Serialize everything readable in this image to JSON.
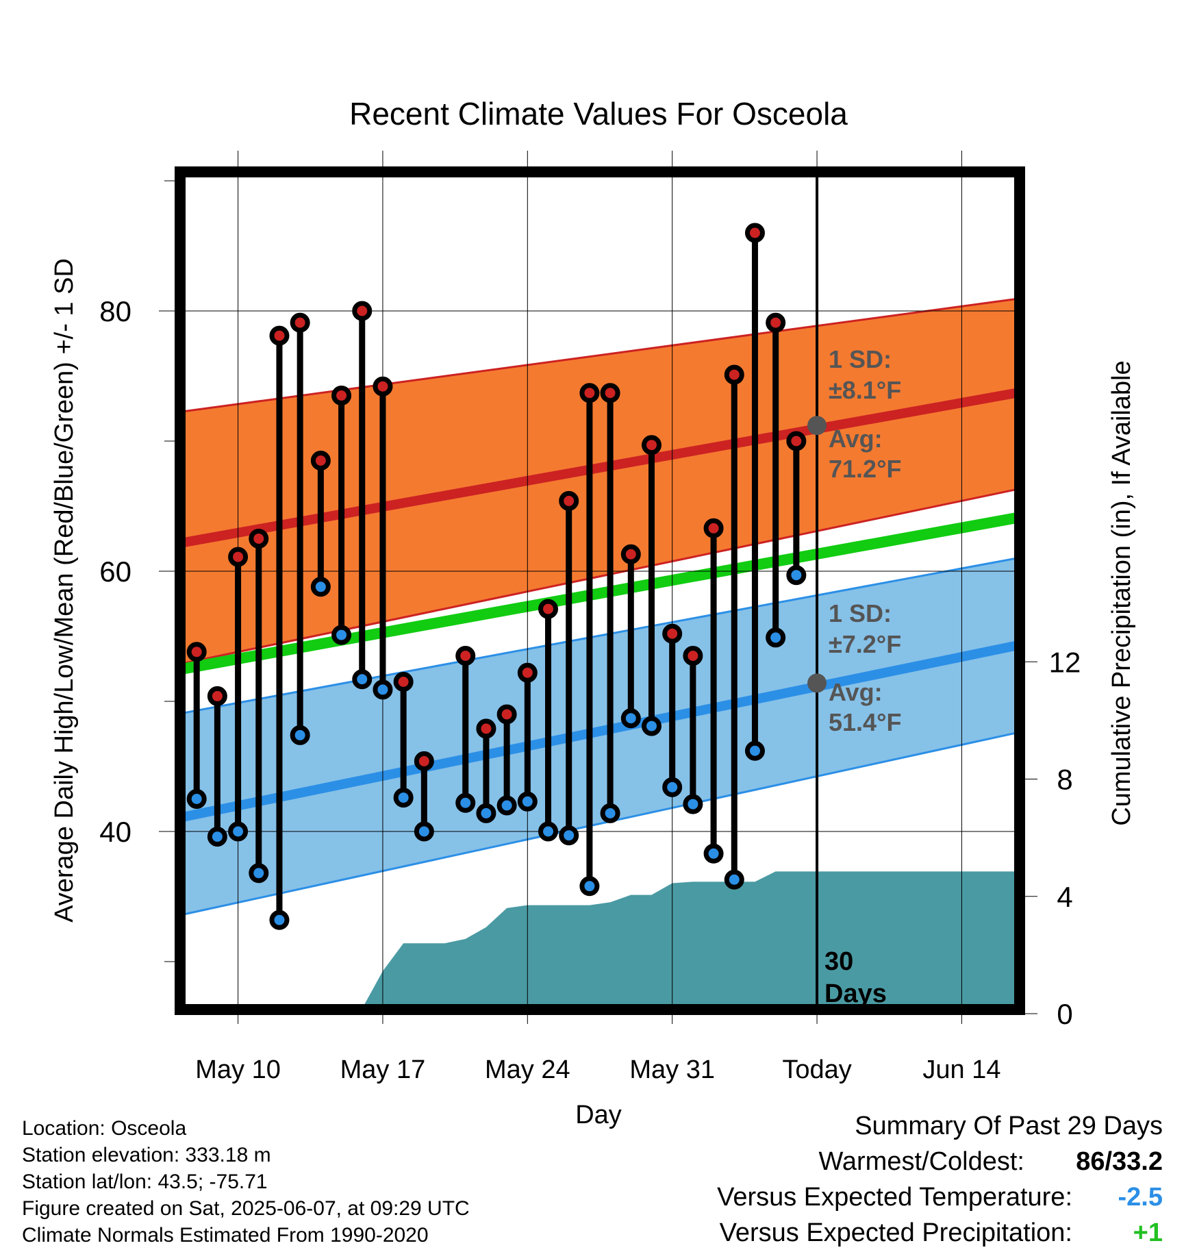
{
  "chart_data": {
    "type": "line",
    "title": "Recent Climate Values For Osceola",
    "xlabel": "Day",
    "ylabel": "Average Daily High/Low/Mean (Red/Blue/Green) +/- 1 SD",
    "y2label": "Cumulative Precipitation (in), If Available",
    "x_domain": [
      "2025-05-07",
      "2025-06-17"
    ],
    "x_ticks": [
      {
        "date": "2025-05-10",
        "label": "May 10"
      },
      {
        "date": "2025-05-17",
        "label": "May 17"
      },
      {
        "date": "2025-05-24",
        "label": "May 24"
      },
      {
        "date": "2025-05-31",
        "label": "May 31"
      },
      {
        "date": "2025-06-07",
        "label": "Today"
      },
      {
        "date": "2025-06-14",
        "label": "Jun 14"
      }
    ],
    "ylim": [
      26,
      91
    ],
    "y_ticks": [
      40,
      60,
      80
    ],
    "y_minor_ticks": [
      30,
      50,
      70,
      90
    ],
    "y2lim": [
      0,
      28.85
    ],
    "y2_ticks": [
      0,
      4,
      8,
      12
    ],
    "grid": true,
    "today": "2025-06-07",
    "today_label_lines": [
      "30",
      "Days"
    ],
    "normals": {
      "dates": [
        "2025-05-07",
        "2025-06-17"
      ],
      "high_avg": [
        62.1,
        73.8
      ],
      "high_upper": [
        72.2,
        81.0
      ],
      "high_lower": [
        52.8,
        66.4
      ],
      "low_avg": [
        41.0,
        54.4
      ],
      "low_upper": [
        49.0,
        61.1
      ],
      "low_lower": [
        33.5,
        47.7
      ],
      "mean_avg": [
        52.4,
        64.2
      ]
    },
    "annotations": {
      "high": {
        "sd_line1": "1 SD:",
        "sd_line2": "±8.1°F",
        "avg_line1": "Avg:",
        "avg_line2": "71.2°F",
        "avg_value": 71.2
      },
      "low": {
        "sd_line1": "1 SD:",
        "sd_line2": "±7.2°F",
        "avg_line1": "Avg:",
        "avg_line2": "51.4°F",
        "avg_value": 51.4
      }
    },
    "series": [
      {
        "name": "High",
        "color": "#cc2222",
        "x": [
          "2025-05-08",
          "2025-05-09",
          "2025-05-10",
          "2025-05-11",
          "2025-05-12",
          "2025-05-13",
          "2025-05-14",
          "2025-05-15",
          "2025-05-16",
          "2025-05-17",
          "2025-05-18",
          "2025-05-19",
          "2025-05-21",
          "2025-05-22",
          "2025-05-23",
          "2025-05-24",
          "2025-05-25",
          "2025-05-26",
          "2025-05-27",
          "2025-05-28",
          "2025-05-29",
          "2025-05-30",
          "2025-05-31",
          "2025-06-01",
          "2025-06-02",
          "2025-06-03",
          "2025-06-04",
          "2025-06-05",
          "2025-06-06"
        ],
        "values": [
          53.8,
          50.4,
          61.1,
          62.5,
          78.1,
          79.1,
          68.5,
          73.5,
          80.0,
          74.2,
          51.5,
          45.4,
          53.5,
          47.9,
          49.0,
          52.2,
          57.1,
          65.4,
          73.7,
          73.7,
          61.3,
          69.7,
          55.2,
          53.5,
          63.3,
          75.1,
          86.0,
          79.1,
          70.0
        ]
      },
      {
        "name": "Low",
        "color": "#2b8fe6",
        "x": [
          "2025-05-08",
          "2025-05-09",
          "2025-05-10",
          "2025-05-11",
          "2025-05-12",
          "2025-05-13",
          "2025-05-14",
          "2025-05-15",
          "2025-05-16",
          "2025-05-17",
          "2025-05-18",
          "2025-05-19",
          "2025-05-21",
          "2025-05-22",
          "2025-05-23",
          "2025-05-24",
          "2025-05-25",
          "2025-05-26",
          "2025-05-27",
          "2025-05-28",
          "2025-05-29",
          "2025-05-30",
          "2025-05-31",
          "2025-06-01",
          "2025-06-02",
          "2025-06-03",
          "2025-06-04",
          "2025-06-05",
          "2025-06-06"
        ],
        "values": [
          42.5,
          39.6,
          40.0,
          36.8,
          33.2,
          47.4,
          58.8,
          55.1,
          51.7,
          50.9,
          42.6,
          40.0,
          42.2,
          41.4,
          42.0,
          42.3,
          40.0,
          39.7,
          35.8,
          41.4,
          48.7,
          48.1,
          43.4,
          42.1,
          38.3,
          36.3,
          46.2,
          54.9,
          59.7
        ]
      },
      {
        "name": "Cumulative Precipitation",
        "x": [
          "2025-05-08",
          "2025-05-09",
          "2025-05-10",
          "2025-05-11",
          "2025-05-12",
          "2025-05-13",
          "2025-05-14",
          "2025-05-15",
          "2025-05-16",
          "2025-05-17",
          "2025-05-18",
          "2025-05-19",
          "2025-05-20",
          "2025-05-21",
          "2025-05-22",
          "2025-05-23",
          "2025-05-24",
          "2025-05-25",
          "2025-05-26",
          "2025-05-27",
          "2025-05-28",
          "2025-05-29",
          "2025-05-30",
          "2025-05-31",
          "2025-06-01",
          "2025-06-02",
          "2025-06-03",
          "2025-06-04",
          "2025-06-05",
          "2025-06-06",
          "2025-06-17"
        ],
        "values": [
          0.0,
          0.15,
          0.15,
          0.15,
          0.15,
          0.15,
          0.17,
          0.17,
          0.17,
          1.45,
          2.4,
          2.4,
          2.4,
          2.55,
          2.95,
          3.6,
          3.7,
          3.7,
          3.7,
          3.7,
          3.8,
          4.05,
          4.05,
          4.45,
          4.5,
          4.5,
          4.5,
          4.5,
          4.85,
          4.85,
          4.85
        ]
      }
    ]
  },
  "footer": {
    "location": "Location: Osceola",
    "elevation": "Station elevation: 333.18 m",
    "latlon": "Station lat/lon: 43.5; -75.71",
    "created": "Figure created on Sat, 2025-06-07, at 09:29 UTC",
    "normals": "Climate Normals Estimated From 1990-2020"
  },
  "summary": {
    "title": "Summary Of Past 29 Days",
    "warmest_label": "Warmest/Coldest:",
    "warmest_value": "86/33.2",
    "temp_label": "Versus Expected Temperature:",
    "temp_value": "-2.5",
    "temp_color": "#2b8fe6",
    "precip_label": "Versus Expected Precipitation:",
    "precip_value": "+1",
    "precip_color": "#22c022"
  },
  "colors": {
    "high_band": "#f47a30",
    "high_line": "#cc2222",
    "low_band": "#86c1e8",
    "low_line": "#2b8fe6",
    "mean_line": "#11cc11",
    "precip_fill": "#4a9aa3",
    "annotation": "#555555"
  }
}
